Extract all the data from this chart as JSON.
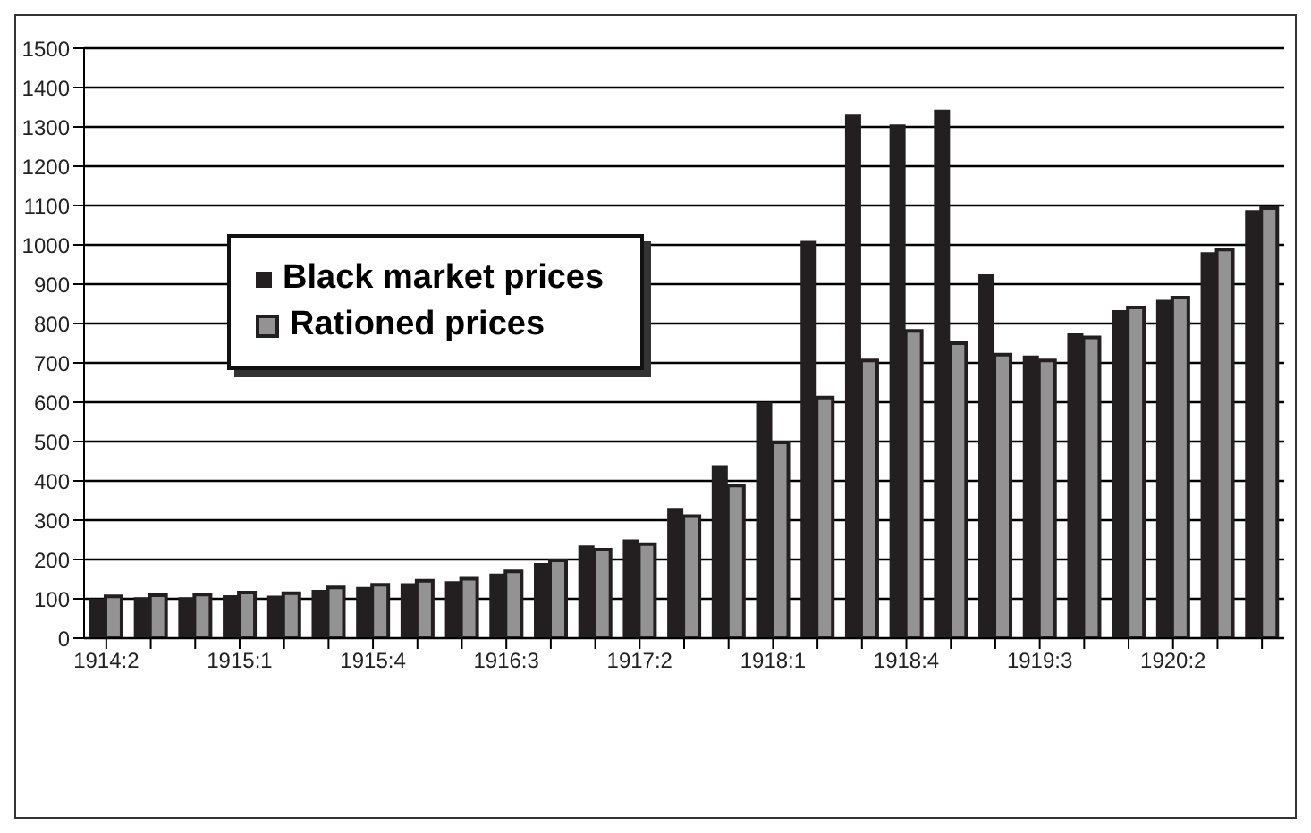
{
  "chart_data": {
    "type": "bar",
    "categories": [
      "1914:2",
      null,
      null,
      "1915:1",
      null,
      null,
      "1915:4",
      null,
      null,
      "1916:3",
      null,
      null,
      "1917:2",
      null,
      null,
      "1918:1",
      null,
      null,
      "1918:4",
      null,
      null,
      "1919:3",
      null,
      null,
      "1920:2",
      null,
      null
    ],
    "series": [
      {
        "name": "Black market prices",
        "color": "#231f20",
        "values": [
          100,
          104,
          104,
          109,
          108,
          123,
          130,
          140,
          145,
          164,
          191,
          236,
          251,
          331,
          440,
          600,
          1010,
          1331,
          1306,
          1344,
          925,
          719,
          775,
          834,
          860,
          981,
          1088
        ]
      },
      {
        "name": "Rationed prices",
        "color": "#939393",
        "values": [
          106,
          109,
          111,
          116,
          114,
          129,
          136,
          146,
          151,
          170,
          198,
          225,
          239,
          310,
          388,
          498,
          612,
          706,
          781,
          750,
          721,
          706,
          765,
          841,
          866,
          988,
          1093
        ]
      }
    ],
    "ylim": [
      0,
      1500
    ],
    "yticks": [
      0,
      100,
      200,
      300,
      400,
      500,
      600,
      700,
      800,
      900,
      1000,
      1100,
      1200,
      1300,
      1400,
      1500
    ],
    "grid": "y",
    "legend": "top left"
  }
}
